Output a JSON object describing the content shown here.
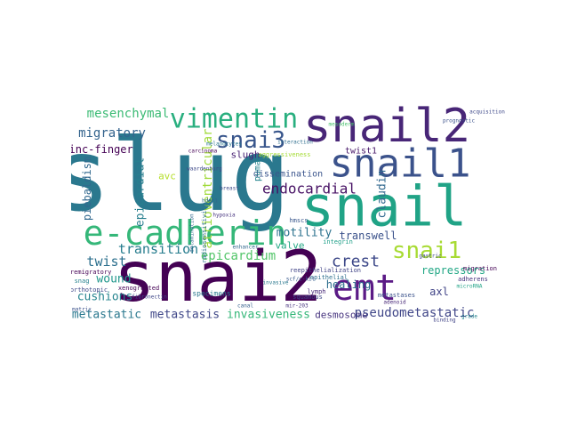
{
  "figure": {
    "type": "word-cloud",
    "background": "#ffffff",
    "palette": "viridis",
    "words": [
      {
        "text": "slug",
        "color": "#2a788e"
      },
      {
        "text": "snai2",
        "color": "#440154"
      },
      {
        "text": "snail2",
        "color": "#482677"
      },
      {
        "text": "snail",
        "color": "#20a386"
      },
      {
        "text": "snail1",
        "color": "#3b528b"
      },
      {
        "text": "e-cadherin",
        "color": "#35b779"
      },
      {
        "text": "emt",
        "color": "#5b1a86"
      },
      {
        "text": "vimentin",
        "color": "#29af7f"
      },
      {
        "text": "snai3",
        "color": "#39568c"
      },
      {
        "text": "snai1",
        "color": "#a8db34"
      },
      {
        "text": "mesenchymal",
        "color": "#3cbb75"
      },
      {
        "text": "endocardial",
        "color": "#471164"
      },
      {
        "text": "migratory",
        "color": "#33638d"
      },
      {
        "text": "transition",
        "color": "#287d8e"
      },
      {
        "text": "epicardium",
        "color": "#52c569"
      },
      {
        "text": "crest",
        "color": "#3e4989"
      },
      {
        "text": "twist",
        "color": "#2d708e"
      },
      {
        "text": "wound",
        "color": "#1f968b"
      },
      {
        "text": "cushions",
        "color": "#25848e"
      },
      {
        "text": "metastatic",
        "color": "#2a788e"
      },
      {
        "text": "metastasis",
        "color": "#3f4788"
      },
      {
        "text": "invasiveness",
        "color": "#35b779"
      },
      {
        "text": "desmosome",
        "color": "#46337e"
      },
      {
        "text": "pseudometastatic",
        "color": "#404688"
      },
      {
        "text": "atrioventricular",
        "color": "#a0da39"
      },
      {
        "text": "epicardial",
        "color": "#277f8e"
      },
      {
        "text": "motility",
        "color": "#2c728e"
      },
      {
        "text": "transwell",
        "color": "#3b528b"
      },
      {
        "text": "repressors",
        "color": "#22a785"
      },
      {
        "text": "healing",
        "color": "#2e6e8e"
      },
      {
        "text": "axl",
        "color": "#414487"
      },
      {
        "text": "claudin",
        "color": "#31688e"
      },
      {
        "text": "zinc-finger",
        "color": "#440154"
      },
      {
        "text": "piebaldism",
        "color": "#31688e"
      },
      {
        "text": "slugh",
        "color": "#482173"
      },
      {
        "text": "dissemination",
        "color": "#3a548c"
      },
      {
        "text": "twist1",
        "color": "#48186a"
      },
      {
        "text": "puma",
        "color": "#25858e"
      },
      {
        "text": "avc",
        "color": "#b5de2b"
      },
      {
        "text": "valve",
        "color": "#22a884"
      },
      {
        "text": "mesoderm",
        "color": "#4ac16d"
      },
      {
        "text": "breast",
        "color": "#3e4a89"
      },
      {
        "text": "hdac1",
        "color": "#31688e"
      },
      {
        "text": "integrin",
        "color": "#1f9f88"
      },
      {
        "text": "snag",
        "color": "#26828e"
      },
      {
        "text": "xenografted",
        "color": "#440154"
      },
      {
        "text": "orthotopic",
        "color": "#3f4788"
      },
      {
        "text": "specimens",
        "color": "#2a788e"
      },
      {
        "text": "hmscs",
        "color": "#39568c"
      },
      {
        "text": "reepithelialization",
        "color": "#414487"
      },
      {
        "text": "epithelial",
        "color": "#2d708e"
      },
      {
        "text": "metastases",
        "color": "#3b528b"
      },
      {
        "text": "lymph",
        "color": "#482878"
      },
      {
        "text": "migration",
        "color": "#440154"
      },
      {
        "text": "adherens",
        "color": "#46327e"
      },
      {
        "text": "squamous",
        "color": "#3e4989"
      },
      {
        "text": "premigratory",
        "color": "#440154"
      },
      {
        "text": "aggressiveness",
        "color": "#a5db36"
      },
      {
        "text": "waardenburg",
        "color": "#3e4989"
      },
      {
        "text": "radiosensitivity",
        "color": "#2c728e"
      },
      {
        "text": "delamination",
        "color": "#31688e"
      },
      {
        "text": "prognostic",
        "color": "#3b528b"
      },
      {
        "text": "carcinoma",
        "color": "#440154"
      },
      {
        "text": "melanocytes",
        "color": "#2a788e"
      },
      {
        "text": "acquisition",
        "color": "#3e4989"
      },
      {
        "text": "scf/c-kit",
        "color": "#38598c"
      },
      {
        "text": "adenoid",
        "color": "#482878"
      },
      {
        "text": "microRNA",
        "color": "#20a386"
      },
      {
        "text": "fibronectin",
        "color": "#3f4788"
      },
      {
        "text": "enhancer",
        "color": "#31688e"
      },
      {
        "text": "mir-203",
        "color": "#46337e"
      },
      {
        "text": "grade",
        "color": "#25848e"
      },
      {
        "text": "interaction",
        "color": "#2e6e8e"
      },
      {
        "text": "matrix",
        "color": "#3b528b"
      },
      {
        "text": "canal",
        "color": "#35608d"
      },
      {
        "text": "gastric",
        "color": "#3f4889"
      },
      {
        "text": "binding",
        "color": "#414487"
      },
      {
        "text": "invasive",
        "color": "#2a788e"
      },
      {
        "text": "hypoxia",
        "color": "#46337e"
      }
    ]
  }
}
